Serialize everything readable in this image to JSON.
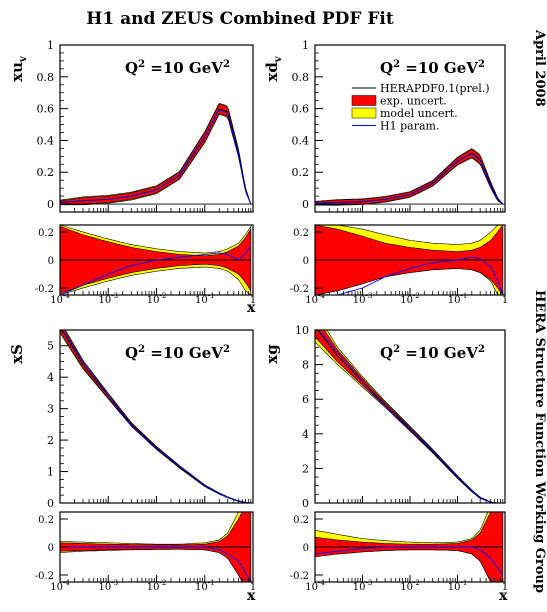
{
  "figure": {
    "title": "H1 and ZEUS Combined PDF Fit",
    "side_date": "April 2008",
    "side_group": "HERA Structure Function Working Group",
    "colors": {
      "exp": "#ff0000",
      "model": "#ffff00",
      "central": "#000000",
      "param": "#0000ff"
    }
  },
  "legend": {
    "central": "HERAPDF0.1(prel.)",
    "exp": "exp. uncert.",
    "model": "model uncert.",
    "param": "H1 param."
  },
  "chart_data": [
    {
      "id": "xuv",
      "type": "line",
      "panel": "top-left",
      "ylabel": "xu",
      "ylabel_sub": "v",
      "annotation": "Q2 =10 GeV2",
      "xlabel": "x",
      "xscale": "log",
      "xlim": [
        0.0001,
        1
      ],
      "ylim": [
        -0.05,
        1.0
      ],
      "yticks": [
        "0",
        "0.2",
        "0.4",
        "0.6",
        "0.8",
        "1"
      ],
      "x": [
        0.0001,
        0.0003,
        0.001,
        0.003,
        0.01,
        0.03,
        0.1,
        0.2,
        0.3,
        0.5,
        0.7,
        0.9
      ],
      "central": [
        0.01,
        0.02,
        0.03,
        0.05,
        0.09,
        0.18,
        0.42,
        0.6,
        0.58,
        0.32,
        0.09,
        0.0
      ],
      "exp_band": [
        0.01,
        0.02,
        0.02,
        0.02,
        0.02,
        0.02,
        0.03,
        0.03,
        0.03,
        0.02,
        0.01,
        0.0
      ],
      "model_band": [
        0.015,
        0.025,
        0.025,
        0.025,
        0.025,
        0.025,
        0.035,
        0.035,
        0.035,
        0.025,
        0.012,
        0.0
      ],
      "ratio": {
        "ylim": [
          -0.25,
          0.25
        ],
        "yticks": [
          "0.2",
          "0",
          "-0.2"
        ],
        "exp_band": [
          0.24,
          0.18,
          0.13,
          0.09,
          0.06,
          0.04,
          0.03,
          0.04,
          0.06,
          0.1,
          0.16,
          0.22
        ],
        "model_up": [
          0.25,
          0.2,
          0.15,
          0.11,
          0.08,
          0.06,
          0.05,
          0.06,
          0.08,
          0.12,
          0.18,
          0.24
        ],
        "model_low": [
          -0.25,
          -0.2,
          -0.15,
          -0.11,
          -0.08,
          -0.06,
          -0.05,
          -0.06,
          -0.08,
          -0.14,
          -0.22,
          -0.25
        ],
        "param": [
          -0.25,
          -0.18,
          -0.1,
          -0.04,
          0.0,
          0.02,
          0.04,
          0.05,
          0.04,
          0.0,
          0.05,
          0.1
        ]
      }
    },
    {
      "id": "xdv",
      "type": "line",
      "panel": "top-right",
      "ylabel": "xd",
      "ylabel_sub": "v",
      "annotation": "Q2 =10 GeV2",
      "xlabel": "",
      "xscale": "log",
      "xlim": [
        0.0001,
        1
      ],
      "ylim": [
        -0.05,
        1.0
      ],
      "yticks": [
        "0",
        "0.2",
        "0.4",
        "0.6",
        "0.8",
        "1"
      ],
      "x": [
        0.0001,
        0.0003,
        0.001,
        0.003,
        0.01,
        0.03,
        0.1,
        0.2,
        0.3,
        0.5,
        0.7,
        0.9
      ],
      "central": [
        0.005,
        0.01,
        0.015,
        0.03,
        0.06,
        0.13,
        0.27,
        0.32,
        0.28,
        0.12,
        0.03,
        0.0
      ],
      "exp_band": [
        0.01,
        0.015,
        0.015,
        0.015,
        0.015,
        0.015,
        0.02,
        0.025,
        0.025,
        0.015,
        0.008,
        0.0
      ],
      "model_band": [
        0.012,
        0.018,
        0.018,
        0.018,
        0.018,
        0.018,
        0.025,
        0.03,
        0.03,
        0.02,
        0.01,
        0.0
      ],
      "ratio": {
        "ylim": [
          -0.25,
          0.25
        ],
        "yticks": [
          "0.2",
          "0",
          "-0.2"
        ],
        "exp_band": [
          0.25,
          0.22,
          0.17,
          0.12,
          0.09,
          0.07,
          0.06,
          0.07,
          0.09,
          0.14,
          0.2,
          0.25
        ],
        "model_up": [
          0.25,
          0.25,
          0.22,
          0.18,
          0.14,
          0.12,
          0.11,
          0.12,
          0.14,
          0.2,
          0.25,
          0.25
        ],
        "model_low": [
          -0.25,
          -0.22,
          -0.17,
          -0.12,
          -0.09,
          -0.07,
          -0.06,
          -0.07,
          -0.09,
          -0.15,
          -0.25,
          -0.25
        ],
        "param": [
          -0.25,
          -0.25,
          -0.2,
          -0.12,
          -0.06,
          -0.02,
          0.0,
          0.02,
          0.01,
          -0.05,
          -0.15,
          -0.25
        ]
      }
    },
    {
      "id": "xS",
      "type": "line",
      "panel": "bottom-left",
      "ylabel": "xS",
      "ylabel_sub": "",
      "annotation": "Q2 =10 GeV2",
      "xlabel": "x",
      "xscale": "log",
      "xlim": [
        0.0001,
        1
      ],
      "ylim": [
        0,
        5.5
      ],
      "yticks": [
        "0",
        "1",
        "2",
        "3",
        "4",
        "5"
      ],
      "x": [
        0.0001,
        0.0003,
        0.001,
        0.003,
        0.01,
        0.03,
        0.1,
        0.2,
        0.3,
        0.5,
        0.7,
        0.9
      ],
      "central": [
        5.6,
        4.4,
        3.4,
        2.5,
        1.75,
        1.15,
        0.55,
        0.3,
        0.18,
        0.06,
        0.02,
        0.0
      ],
      "exp_band": [
        0.15,
        0.1,
        0.07,
        0.05,
        0.04,
        0.03,
        0.02,
        0.02,
        0.01,
        0.01,
        0.0,
        0.0
      ],
      "model_band": [
        0.2,
        0.14,
        0.09,
        0.06,
        0.05,
        0.04,
        0.03,
        0.02,
        0.015,
        0.01,
        0.0,
        0.0
      ],
      "ratio": {
        "ylim": [
          -0.25,
          0.25
        ],
        "yticks": [
          "0.2",
          "0",
          "-0.2"
        ],
        "exp_band": [
          0.03,
          0.025,
          0.02,
          0.018,
          0.016,
          0.015,
          0.02,
          0.04,
          0.08,
          0.2,
          0.3,
          0.3
        ],
        "model_up": [
          0.04,
          0.035,
          0.03,
          0.025,
          0.02,
          0.02,
          0.03,
          0.05,
          0.1,
          0.25,
          0.3,
          0.3
        ],
        "model_low": [
          -0.04,
          -0.03,
          -0.025,
          -0.02,
          -0.018,
          -0.016,
          -0.02,
          -0.04,
          -0.08,
          -0.2,
          -0.3,
          -0.3
        ],
        "param": [
          0.0,
          0.0,
          0.0,
          0.0,
          0.0,
          0.0,
          0.0,
          -0.02,
          -0.05,
          -0.1,
          -0.18,
          -0.25
        ]
      }
    },
    {
      "id": "xg",
      "type": "line",
      "panel": "bottom-right",
      "ylabel": "xg",
      "ylabel_sub": "",
      "annotation": "Q2 =10 GeV2",
      "xlabel": "x",
      "xscale": "log",
      "xlim": [
        0.0001,
        1
      ],
      "ylim": [
        0,
        10
      ],
      "yticks": [
        "0",
        "2",
        "4",
        "6",
        "8",
        "10"
      ],
      "x": [
        0.0001,
        0.0003,
        0.001,
        0.003,
        0.01,
        0.03,
        0.1,
        0.2,
        0.3,
        0.5,
        0.7,
        0.9
      ],
      "central": [
        10.2,
        8.5,
        7.0,
        5.7,
        4.3,
        3.0,
        1.5,
        0.7,
        0.3,
        0.05,
        0.0,
        0.0
      ],
      "exp_band": [
        0.6,
        0.35,
        0.2,
        0.12,
        0.1,
        0.08,
        0.06,
        0.05,
        0.03,
        0.01,
        0.0,
        0.0
      ],
      "model_band": [
        0.9,
        0.5,
        0.3,
        0.18,
        0.14,
        0.11,
        0.08,
        0.06,
        0.04,
        0.01,
        0.0,
        0.0
      ],
      "ratio": {
        "ylim": [
          -0.25,
          0.25
        ],
        "yticks": [
          "0.2",
          "0",
          "-0.2"
        ],
        "exp_band": [
          0.07,
          0.05,
          0.035,
          0.025,
          0.02,
          0.02,
          0.025,
          0.05,
          0.1,
          0.25,
          0.3,
          0.3
        ],
        "model_up": [
          0.12,
          0.09,
          0.06,
          0.045,
          0.035,
          0.03,
          0.035,
          0.06,
          0.12,
          0.3,
          0.3,
          0.3
        ],
        "model_low": [
          -0.06,
          -0.05,
          -0.035,
          -0.025,
          -0.02,
          -0.02,
          -0.025,
          -0.05,
          -0.1,
          -0.25,
          -0.3,
          -0.3
        ],
        "param": [
          -0.05,
          -0.03,
          -0.01,
          0.0,
          0.0,
          0.0,
          0.0,
          0.0,
          -0.02,
          -0.08,
          -0.15,
          -0.2
        ]
      }
    }
  ]
}
